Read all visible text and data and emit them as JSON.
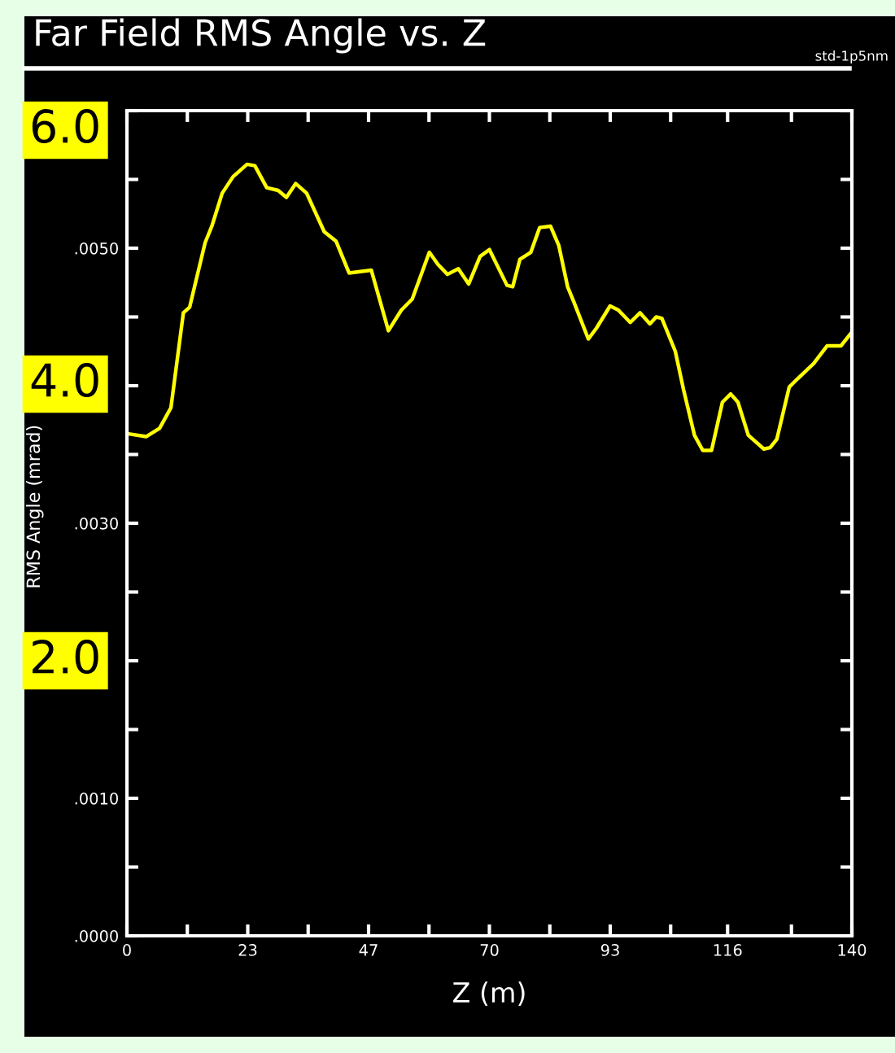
{
  "chart_data": {
    "type": "line",
    "title": "Far Field RMS Angle vs. Z",
    "subtitle": "std-1p5nm",
    "xlabel": "Z (m)",
    "ylabel": "RMS Angle (mrad)",
    "x": [
      0.3,
      3.7,
      6.3,
      8.5,
      10.9,
      12.1,
      15.1,
      16.4,
      18.4,
      20.5,
      23.2,
      24.7,
      27.0,
      29.2,
      30.8,
      32.6,
      34.7,
      38.1,
      40.4,
      42.9,
      47.2,
      50.5,
      53.0,
      55.1,
      58.4,
      60.1,
      61.9,
      64.0,
      66.0,
      68.2,
      70.0,
      73.4,
      74.5,
      75.9,
      78.0,
      79.7,
      81.8,
      83.4,
      85.1,
      86.3,
      89.1,
      90.7,
      93.3,
      94.9,
      97.2,
      99.1,
      101.0,
      102.2,
      103.3,
      105.9,
      107.5,
      109.6,
      111.2,
      112.9,
      115.0,
      116.6,
      118.0,
      120.0,
      123.0,
      124.2,
      125.5,
      127.9,
      129.5,
      132.6,
      135.2,
      137.9,
      140
    ],
    "series": [
      {
        "color": "#ffff00",
        "values": [
          0.00365,
          0.00363,
          0.00369,
          0.00384,
          0.00453,
          0.00457,
          0.00504,
          0.00516,
          0.0054,
          0.00552,
          0.00561,
          0.0056,
          0.00544,
          0.00542,
          0.00537,
          0.00547,
          0.0054,
          0.00512,
          0.00505,
          0.00482,
          0.00484,
          0.0044,
          0.00455,
          0.00463,
          0.00497,
          0.00488,
          0.00481,
          0.00485,
          0.00474,
          0.00494,
          0.00499,
          0.00473,
          0.00472,
          0.00492,
          0.00497,
          0.00515,
          0.00516,
          0.00502,
          0.00472,
          0.00461,
          0.00434,
          0.00442,
          0.00458,
          0.00455,
          0.00446,
          0.00453,
          0.00445,
          0.0045,
          0.00449,
          0.00425,
          0.00397,
          0.00364,
          0.00353,
          0.00353,
          0.00388,
          0.00394,
          0.00388,
          0.00364,
          0.00354,
          0.00355,
          0.00361,
          0.00399,
          0.00405,
          0.00416,
          0.00429,
          0.00429,
          0.00439
        ]
      }
    ],
    "xlim": [
      0,
      140
    ],
    "ylim": [
      0,
      0.006
    ],
    "xticks": [
      {
        "value": 0,
        "label": "0"
      },
      {
        "value": 11.667,
        "label": null
      },
      {
        "value": 23.333,
        "label": "23"
      },
      {
        "value": 35,
        "label": null
      },
      {
        "value": 46.667,
        "label": "47"
      },
      {
        "value": 58.333,
        "label": null
      },
      {
        "value": 70,
        "label": "70"
      },
      {
        "value": 81.667,
        "label": null
      },
      {
        "value": 93.333,
        "label": "93"
      },
      {
        "value": 105,
        "label": null
      },
      {
        "value": 116,
        "label": "116"
      },
      {
        "value": 128.333,
        "label": null
      },
      {
        "value": 140,
        "label": "140"
      }
    ],
    "yticks": [
      {
        "value": 0,
        "label": ".0000"
      },
      {
        "value": 0.0005,
        "label": null
      },
      {
        "value": 0.001,
        "label": ".0010"
      },
      {
        "value": 0.0015,
        "label": null
      },
      {
        "value": 0.002,
        "label": null
      },
      {
        "value": 0.0025,
        "label": null
      },
      {
        "value": 0.003,
        "label": ".0030"
      },
      {
        "value": 0.0035,
        "label": null
      },
      {
        "value": 0.004,
        "label": null
      },
      {
        "value": 0.0045,
        "label": null
      },
      {
        "value": 0.005,
        "label": ".0050"
      },
      {
        "value": 0.0055,
        "label": null
      },
      {
        "value": 0.006,
        "label": null
      }
    ],
    "annotations": [
      "6.0",
      "4.0",
      "2.0"
    ],
    "grid": false,
    "legend": false,
    "marker": "none",
    "line_style": "solid"
  }
}
